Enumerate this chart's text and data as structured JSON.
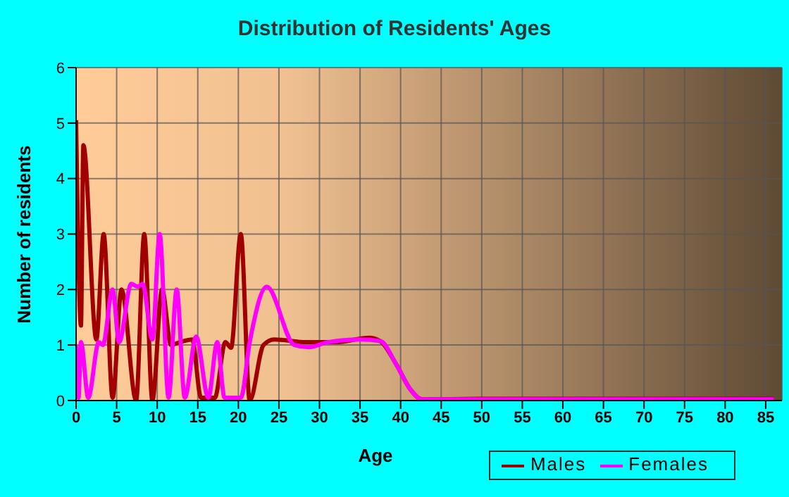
{
  "chart_data": {
    "type": "line",
    "title": "Distribution of Residents' Ages",
    "xlabel": "Age",
    "ylabel": "Number of residents",
    "xlim": [
      0,
      87
    ],
    "xticks": [
      0,
      5,
      10,
      15,
      20,
      25,
      30,
      35,
      40,
      45,
      50,
      55,
      60,
      65,
      70,
      75,
      80,
      85
    ],
    "ylim": [
      0,
      6
    ],
    "yticks": [
      0,
      1,
      2,
      3,
      4,
      5,
      6
    ],
    "grid": true,
    "legend": "bottom right",
    "marker": "none",
    "line_style": "solid",
    "series": [
      {
        "name": "Males",
        "color": "#a00000",
        "x": [
          0,
          0.6,
          0.9,
          2.5,
          3.4,
          4.5,
          5.6,
          7.4,
          8.4,
          9.4,
          10.6,
          11.7,
          12.8,
          14.3,
          15.4,
          17.1,
          18.4,
          19.1,
          20.3,
          21.4,
          23.1,
          24.4,
          28.4,
          32,
          36.1,
          37.5,
          39.5,
          41.2,
          42.6,
          50,
          60,
          70,
          80,
          86
        ],
        "values": [
          5.05,
          1.35,
          4.6,
          1.1,
          3,
          0.05,
          2,
          0,
          3,
          0,
          2,
          1,
          1.05,
          1.1,
          0.05,
          0.05,
          1.05,
          0.95,
          3,
          0,
          1,
          1.1,
          1.05,
          1.05,
          1.13,
          1.07,
          0.64,
          0.2,
          0.02,
          0.03,
          0.03,
          0.03,
          0.03,
          0.03
        ]
      },
      {
        "name": "Females",
        "color": "#ff00ff",
        "x": [
          0,
          0.3,
          0.6,
          1.5,
          2.8,
          3.3,
          4.5,
          5.3,
          6.8,
          7.6,
          8.2,
          9.4,
          10.3,
          11.4,
          12.4,
          13.4,
          14.8,
          16.3,
          17.4,
          18.3,
          20.3,
          21.4,
          23.5,
          26.9,
          28.7,
          31,
          35,
          37.5,
          39.5,
          41.2,
          42.6,
          50,
          60,
          70,
          80,
          86
        ],
        "values": [
          1,
          0.05,
          1.05,
          0.05,
          1.05,
          1,
          2,
          1.05,
          2.1,
          2.05,
          2.1,
          1.1,
          3,
          0.05,
          2,
          0.05,
          1.15,
          0.05,
          1.05,
          0.05,
          0.05,
          1.05,
          2.05,
          1,
          0.96,
          1.05,
          1.1,
          1.07,
          0.64,
          0.2,
          0.02,
          0.02,
          0.02,
          0.02,
          0.02,
          0.02
        ]
      }
    ]
  }
}
